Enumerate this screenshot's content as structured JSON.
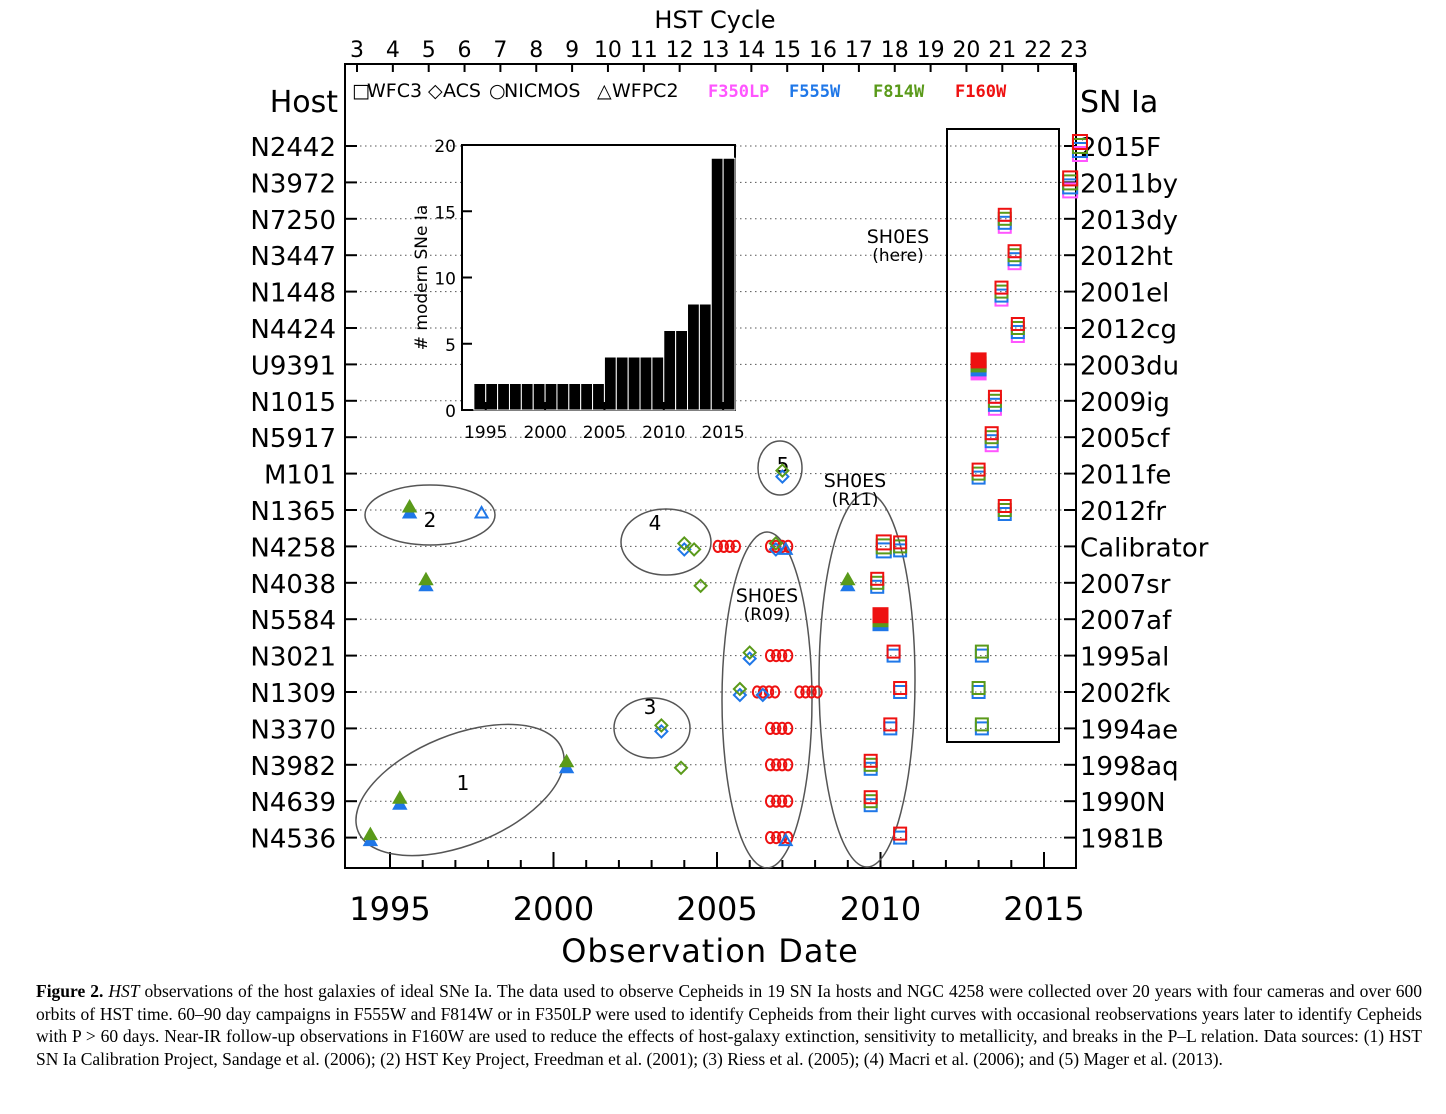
{
  "chart_data": [
    {
      "type": "scatter",
      "top_axis_label": "HST Cycle",
      "top_ticks": [
        "3",
        "4",
        "5",
        "6",
        "7",
        "8",
        "9",
        "10",
        "11",
        "12",
        "13",
        "14",
        "15",
        "16",
        "17",
        "18",
        "19",
        "20",
        "21",
        "22",
        "23"
      ],
      "xlabel": "Observation Date",
      "xticks": [
        "1995",
        "2000",
        "2005",
        "2010",
        "2015"
      ],
      "xlim": [
        1994.2,
        2016.6
      ],
      "left_header": "Host",
      "right_header": "SN Ia",
      "hosts": [
        "N2442",
        "N3972",
        "N7250",
        "N3447",
        "N1448",
        "N4424",
        "U9391",
        "N1015",
        "N5917",
        "M101",
        "N1365",
        "N4258",
        "N4038",
        "N5584",
        "N3021",
        "N1309",
        "N3370",
        "N3982",
        "N4639",
        "N4536"
      ],
      "sne": [
        "2015F",
        "2011by",
        "2013dy",
        "2012ht",
        "2001el",
        "2012cg",
        "2003du",
        "2009ig",
        "2005cf",
        "2011fe",
        "2012fr",
        "Calibrator",
        "2007sr",
        "2007af",
        "1995al",
        "2002fk",
        "1994ae",
        "1998aq",
        "1990N",
        "1981B"
      ],
      "legend_cameras": [
        {
          "symbol": "square",
          "glyph": "□",
          "label": "WFC3"
        },
        {
          "symbol": "diamond",
          "glyph": "◇",
          "label": "ACS"
        },
        {
          "symbol": "circle",
          "glyph": "○",
          "label": "NICMOS"
        },
        {
          "symbol": "triangle",
          "glyph": "△",
          "label": "WFPC2"
        }
      ],
      "legend_filters": [
        {
          "label": "F350LP",
          "color": "#ff55ff"
        },
        {
          "label": "F555W",
          "color": "#1f77e8"
        },
        {
          "label": "F814W",
          "color": "#5a9a1a"
        },
        {
          "label": "F160W",
          "color": "#ee1111"
        }
      ],
      "annotations": [
        {
          "text": "1"
        },
        {
          "text": "2"
        },
        {
          "text": "3"
        },
        {
          "text": "4"
        },
        {
          "text": "5"
        },
        {
          "text": "SH0ES",
          "sub": "(R09)"
        },
        {
          "text": "SH0ES",
          "sub": "(R11)"
        },
        {
          "text": "SH0ES",
          "sub": "(here)"
        }
      ],
      "observations": [
        {
          "host": "N4536",
          "t": 1994.4,
          "camera": "WFPC2",
          "filters": [
            "F555W",
            "F814W"
          ]
        },
        {
          "host": "N4639",
          "t": 1995.3,
          "camera": "WFPC2",
          "filters": [
            "F555W",
            "F814W"
          ]
        },
        {
          "host": "N3982",
          "t": 2000.4,
          "camera": "WFPC2",
          "filters": [
            "F555W",
            "F814W"
          ]
        },
        {
          "host": "N1365",
          "t": 1995.6,
          "camera": "WFPC2",
          "filters": [
            "F555W",
            "F814W"
          ]
        },
        {
          "host": "N1365",
          "t": 1997.8,
          "camera": "WFPC2",
          "filters": [
            "F555W"
          ]
        },
        {
          "host": "N4038",
          "t": 1996.1,
          "camera": "WFPC2",
          "filters": [
            "F555W",
            "F814W"
          ]
        },
        {
          "host": "N3370",
          "t": 2003.3,
          "camera": "ACS",
          "filters": [
            "F555W",
            "F814W"
          ]
        },
        {
          "host": "N3982",
          "t": 2003.9,
          "camera": "ACS",
          "filters": [
            "F814W"
          ]
        },
        {
          "host": "N4258",
          "t": 2004.0,
          "camera": "ACS",
          "filters": [
            "F555W",
            "F814W"
          ]
        },
        {
          "host": "N4258",
          "t": 2004.3,
          "camera": "ACS",
          "filters": [
            "F814W"
          ]
        },
        {
          "host": "N4038",
          "t": 2004.5,
          "camera": "ACS",
          "filters": [
            "F814W"
          ]
        },
        {
          "host": "N4258",
          "t": 2005.3,
          "camera": "NICMOS",
          "filters": [
            "F160W"
          ]
        },
        {
          "host": "N1309",
          "t": 2005.7,
          "camera": "ACS",
          "filters": [
            "F555W",
            "F814W"
          ]
        },
        {
          "host": "N3021",
          "t": 2006.0,
          "camera": "ACS",
          "filters": [
            "F555W",
            "F814W"
          ]
        },
        {
          "host": "N1309",
          "t": 2006.5,
          "camera": "NICMOS",
          "filters": [
            "F160W"
          ]
        },
        {
          "host": "N1309",
          "t": 2006.4,
          "camera": "ACS",
          "filters": [
            "F555W"
          ]
        },
        {
          "host": "N3021",
          "t": 2006.9,
          "camera": "NICMOS",
          "filters": [
            "F160W"
          ]
        },
        {
          "host": "N3370",
          "t": 2006.9,
          "camera": "NICMOS",
          "filters": [
            "F160W"
          ]
        },
        {
          "host": "N3982",
          "t": 2006.9,
          "camera": "NICMOS",
          "filters": [
            "F160W"
          ]
        },
        {
          "host": "N4639",
          "t": 2006.9,
          "camera": "NICMOS",
          "filters": [
            "F160W"
          ]
        },
        {
          "host": "N4536",
          "t": 2006.9,
          "camera": "NICMOS",
          "filters": [
            "F160W"
          ]
        },
        {
          "host": "N4258",
          "t": 2006.9,
          "camera": "NICMOS",
          "filters": [
            "F160W"
          ]
        },
        {
          "host": "N4258",
          "t": 2006.8,
          "camera": "ACS",
          "filters": [
            "F555W",
            "F814W"
          ]
        },
        {
          "host": "N4258",
          "t": 2007.1,
          "camera": "WFPC2",
          "filters": [
            "F555W"
          ]
        },
        {
          "host": "N4536",
          "t": 2007.1,
          "camera": "WFPC2",
          "filters": [
            "F555W"
          ]
        },
        {
          "host": "N1309",
          "t": 2007.8,
          "camera": "NICMOS",
          "filters": [
            "F160W"
          ]
        },
        {
          "host": "M101",
          "t": 2007.0,
          "camera": "ACS",
          "filters": [
            "F555W",
            "F814W"
          ]
        },
        {
          "host": "N4038",
          "t": 2009.0,
          "camera": "WFPC2",
          "filters": [
            "F555W",
            "F814W"
          ]
        },
        {
          "host": "N5584",
          "t": 2010.0,
          "camera": "WFC3",
          "filters": [
            "F555W",
            "F814W",
            "F160W"
          ]
        },
        {
          "host": "N4258",
          "t": 2010.1,
          "camera": "WFC3",
          "filters": [
            "F555W",
            "F814W",
            "F160W"
          ]
        },
        {
          "host": "N2442",
          "t": 2016.1,
          "camera": "WFC3",
          "filters": [
            "F350LP",
            "F555W",
            "F814W",
            "F160W"
          ]
        },
        {
          "host": "N3972",
          "t": 2015.8,
          "camera": "WFC3",
          "filters": [
            "F350LP",
            "F555W",
            "F814W",
            "F160W"
          ]
        },
        {
          "host": "U9391",
          "t": 2013.0,
          "camera": "WFC3",
          "filters": [
            "F350LP",
            "F555W",
            "F814W",
            "F160W"
          ]
        }
      ]
    },
    {
      "type": "bar",
      "ylabel": "# modern SNe Ia",
      "xticks": [
        "1995",
        "2000",
        "2005",
        "2010",
        "2015"
      ],
      "yticks": [
        "0",
        "5",
        "10",
        "15",
        "20"
      ],
      "xlim": [
        1993,
        2016
      ],
      "ylim": [
        0,
        20
      ],
      "x": [
        1993,
        1994,
        1995,
        1996,
        1997,
        1998,
        1999,
        2000,
        2001,
        2002,
        2003,
        2004,
        2005,
        2006,
        2007,
        2008,
        2009,
        2010,
        2011,
        2012,
        2013,
        2014,
        2015
      ],
      "values": [
        0,
        2,
        2,
        2,
        2,
        2,
        2,
        2,
        2,
        2,
        2,
        2,
        4,
        4,
        4,
        4,
        4,
        6,
        6,
        8,
        8,
        19,
        19
      ]
    }
  ],
  "caption": {
    "label": "Figure 2.",
    "text": "observations of the host galaxies of ideal SNe Ia. The data used to observe Cepheids in 19 SN Ia hosts and NGC 4258 were collected over 20 years with four cameras and over 600 orbits of HST time. 60–90 day campaigns in F555W and F814W or in F350LP were used to identify Cepheids from their light curves with occasional reobservations years later to identify Cepheids with P > 60 days. Near-IR follow-up observations in F160W are used to reduce the effects of host-galaxy extinction, sensitivity to metallicity, and breaks in the P–L relation. Data sources: (1) HST SN Ia Calibration Project, Sandage et al. (2006); (2) HST Key Project, Freedman et al. (2001); (3) Riess et al. (2005); (4) Macri et al. (2006); and (5) Mager et al. (2013).",
    "hst": "HST"
  }
}
